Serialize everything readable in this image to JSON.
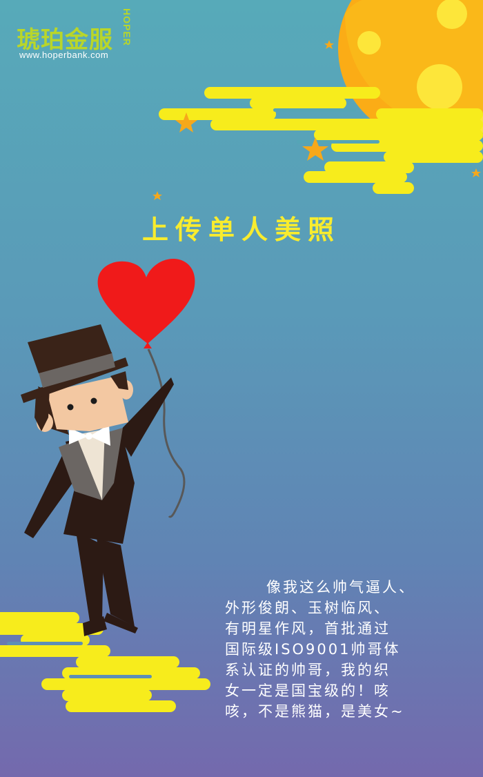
{
  "logo": {
    "name_cn": "琥珀金服",
    "brand": "HOPER",
    "url": "www.hoperbank.com"
  },
  "title": "上传单人美照",
  "poem": {
    "lines": [
      "像我这么帅气逼人、",
      "外形俊朗、玉树临风、",
      "有明星作风，首批通过",
      "国际级ISO9001帅哥体",
      "系认证的帅哥，我的织",
      "女一定是国宝级的！咳",
      "咳，不是熊猫，是美女~"
    ]
  },
  "colors": {
    "background_top": "#57aab9",
    "background_bottom": "#7469ad",
    "cloud_yellow": "#f7ec1c",
    "moon_orange": "#fbac16",
    "heart_red": "#f01a1a",
    "logo_green": "#b9d62a",
    "title_yellow": "#f8ec2e"
  },
  "illustration": {
    "moon": "moon-illustration",
    "heart_balloon": "heart-balloon-illustration",
    "gentleman": "gentleman-top-hat-illustration"
  }
}
